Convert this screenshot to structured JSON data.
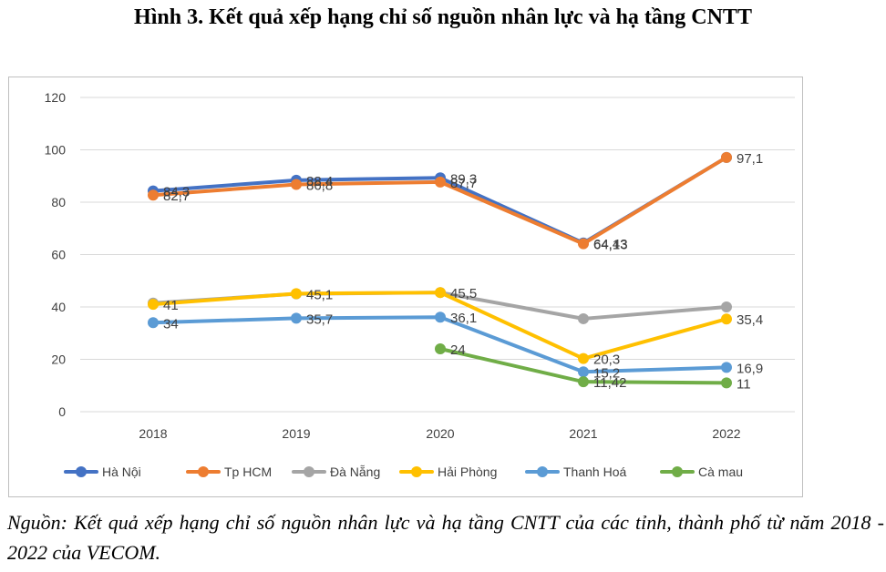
{
  "title": "Hình 3. Kết quả xếp hạng chỉ số nguồn nhân lực và hạ tầng CNTT",
  "caption": "Nguồn: Kết quả xếp hạng chỉ số nguồn nhân lực và hạ tầng CNTT của các tỉnh, thành phố từ năm 2018 - 2022 của VECOM.",
  "chart_data": {
    "type": "line",
    "categories": [
      "2018",
      "2019",
      "2020",
      "2021",
      "2022"
    ],
    "ylim": [
      0,
      120
    ],
    "yticks": [
      0,
      20,
      40,
      60,
      80,
      100,
      120
    ],
    "grid": true,
    "legend": "bottom",
    "series": [
      {
        "name": "Hà Nội",
        "color": "#4472c4",
        "values": [
          84.3,
          88.4,
          89.3,
          64.43,
          97.1
        ],
        "labels": [
          "84,3",
          "88,4",
          "89,3",
          "64,43",
          ""
        ]
      },
      {
        "name": "Tp HCM",
        "color": "#ed7d31",
        "values": [
          82.7,
          86.8,
          87.7,
          64.13,
          97.1
        ],
        "labels": [
          "82,7",
          "86,8",
          "87,7",
          "64,13",
          "97,1"
        ]
      },
      {
        "name": "Đà Nẵng",
        "color": "#a5a5a5",
        "values": [
          41.5,
          45.0,
          45.5,
          35.5,
          40.0
        ],
        "labels": [
          "",
          "",
          "45,5",
          "",
          ""
        ]
      },
      {
        "name": "Hải Phòng",
        "color": "#ffc000",
        "values": [
          41,
          45.1,
          45.5,
          20.3,
          35.4
        ],
        "labels": [
          "41",
          "45,1",
          "",
          "20,3",
          "35,4"
        ]
      },
      {
        "name": "Thanh Hoá",
        "color": "#5b9bd5",
        "values": [
          34,
          35.7,
          36.1,
          15.2,
          16.9
        ],
        "labels": [
          "34",
          "35,7",
          "36,1",
          "15,2",
          "16,9"
        ]
      },
      {
        "name": "Cà mau",
        "color": "#70ad47",
        "values": [
          null,
          null,
          24,
          11.42,
          11
        ],
        "labels": [
          "",
          "",
          "24",
          "11,42",
          "11"
        ]
      }
    ]
  }
}
